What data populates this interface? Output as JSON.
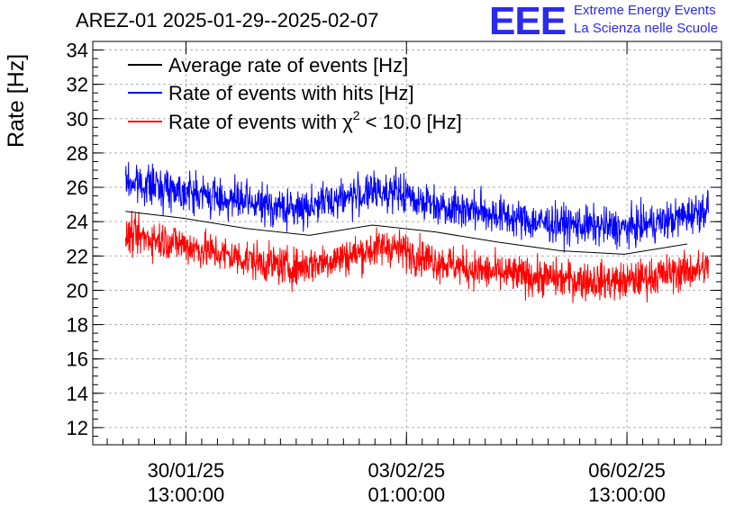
{
  "header": {
    "title": "AREZ-01 2025-01-29--2025-02-07",
    "logo_text": "EEE",
    "logo_line1": "Extreme Energy Events",
    "logo_line2": "La Scienza nelle Scuole"
  },
  "colors": {
    "avg": "#000000",
    "hits": "#0000ff",
    "chi2": "#ff0000",
    "grid": "#b0b0b0",
    "logo": "#2a2aee"
  },
  "chart_data": {
    "type": "line",
    "title": "AREZ-01 2025-01-29--2025-02-07",
    "ylabel": "Rate [Hz]",
    "xlabel": "",
    "ylim": [
      11,
      34.5
    ],
    "y_ticks": [
      12,
      14,
      16,
      18,
      20,
      22,
      24,
      26,
      28,
      30,
      32,
      34
    ],
    "xlim": [
      "2025-01-29 01:30",
      "2025-02-08 01:00"
    ],
    "x_ticks": [
      {
        "date": "30/01/25",
        "time": "13:00:00",
        "value": "2025-01-30 13:00"
      },
      {
        "date": "03/02/25",
        "time": "01:00:00",
        "value": "2025-02-03 01:00"
      },
      {
        "date": "06/02/25",
        "time": "13:00:00",
        "value": "2025-02-06 13:00"
      }
    ],
    "grid": true,
    "legend_position": "top-left",
    "series": [
      {
        "name": "Average rate of events [Hz]",
        "color": "#000000",
        "x": [
          "2025-01-29 14:00",
          "2025-01-30 12:00",
          "2025-01-31 12:00",
          "2025-02-01 12:00",
          "2025-02-02 12:00",
          "2025-02-03 12:00",
          "2025-02-04 12:00",
          "2025-02-05 12:00",
          "2025-02-06 12:00",
          "2025-02-07 12:00"
        ],
        "values": [
          24.6,
          24.2,
          23.6,
          23.2,
          23.8,
          23.4,
          22.8,
          22.3,
          22.1,
          22.7
        ]
      },
      {
        "name": "Rate of events with hits [Hz]",
        "color": "#0000ff",
        "x": [
          "2025-01-29 14:00",
          "2025-01-30 06:00",
          "2025-01-30 18:00",
          "2025-01-31 12:00",
          "2025-02-01 06:00",
          "2025-02-02 00:00",
          "2025-02-02 18:00",
          "2025-02-03 12:00",
          "2025-02-04 06:00",
          "2025-02-05 00:00",
          "2025-02-05 18:00",
          "2025-02-06 12:00",
          "2025-02-07 06:00",
          "2025-02-07 20:00"
        ],
        "values": [
          26.3,
          26.0,
          25.6,
          25.1,
          24.7,
          25.4,
          25.8,
          25.0,
          24.6,
          24.0,
          23.8,
          23.6,
          24.1,
          24.8
        ]
      },
      {
        "name": "Rate of events with χ² < 10.0 [Hz]",
        "color": "#ff0000",
        "x": [
          "2025-01-29 14:00",
          "2025-01-30 06:00",
          "2025-01-30 18:00",
          "2025-01-31 12:00",
          "2025-02-01 06:00",
          "2025-02-02 00:00",
          "2025-02-02 18:00",
          "2025-02-03 12:00",
          "2025-02-04 06:00",
          "2025-02-05 00:00",
          "2025-02-05 18:00",
          "2025-02-06 12:00",
          "2025-02-07 06:00",
          "2025-02-07 20:00"
        ],
        "values": [
          23.2,
          22.9,
          22.4,
          21.8,
          21.3,
          21.9,
          22.6,
          21.7,
          21.1,
          20.8,
          20.6,
          20.5,
          21.0,
          21.3
        ]
      }
    ],
    "legend": {
      "avg_label": "Average rate of events [Hz]",
      "hits_label": "Rate of events with hits [Hz]",
      "chi2_prefix": "Rate of events with χ",
      "chi2_sup": "2",
      "chi2_suffix": " < 10.0 [Hz]"
    }
  }
}
